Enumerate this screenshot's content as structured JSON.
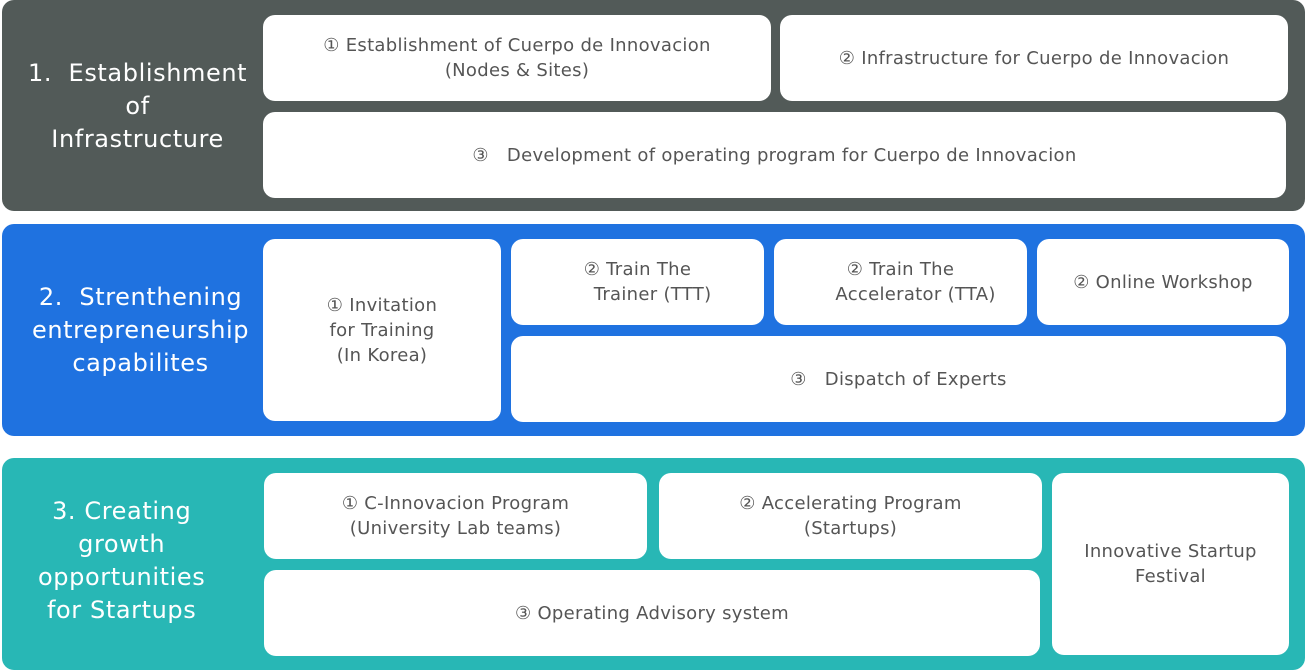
{
  "colors": {
    "section_1": "#525a58",
    "section_2": "#1f72e0",
    "section_3": "#28b7b5",
    "box_text": "#555555"
  },
  "sections": [
    {
      "title": "1.  Establishment\nof\nInfrastructure",
      "items": [
        "① Establishment of Cuerpo de Innovacion\n(Nodes & Sites)",
        "② Infrastructure for Cuerpo de Innovacion",
        "③   Development of operating program for Cuerpo de Innovacion"
      ]
    },
    {
      "title": "2.  Strenthening\nentrepreneurship\ncapabilites",
      "items": [
        "① Invitation\nfor Training\n(In Korea)",
        "② Train The\n     Trainer (TTT)",
        "② Train The\n     Accelerator (TTA)",
        "② Online Workshop",
        "③   Dispatch of Experts"
      ]
    },
    {
      "title": "3. Creating\ngrowth\nopportunities\nfor Startups",
      "items": [
        "① C-Innovacion Program\n(University Lab teams)",
        "② Accelerating Program\n(Startups)",
        "Innovative Startup\nFestival",
        "③ Operating Advisory system"
      ]
    }
  ]
}
